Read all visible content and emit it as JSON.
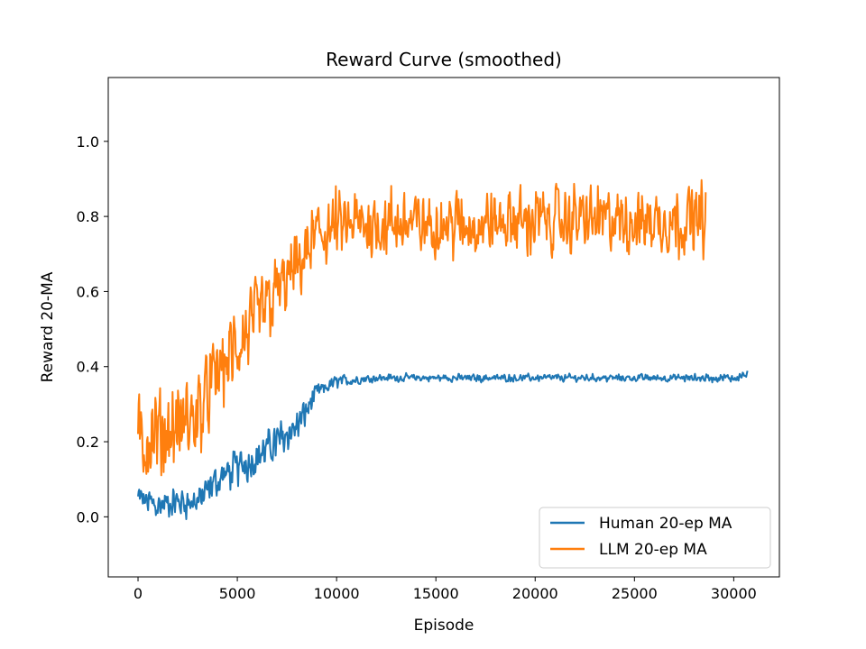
{
  "chart_data": {
    "type": "line",
    "title": "Reward Curve (smoothed)",
    "xlabel": "Episode",
    "ylabel": "Reward 20-MA",
    "xlim": [
      -1500,
      32300
    ],
    "ylim": [
      -0.16,
      1.17
    ],
    "xticks": [
      0,
      5000,
      10000,
      15000,
      20000,
      25000,
      30000
    ],
    "yticks": [
      0.0,
      0.2,
      0.4,
      0.6,
      0.8,
      1.0
    ],
    "xtick_labels": [
      "0",
      "5000",
      "10000",
      "15000",
      "20000",
      "25000",
      "30000"
    ],
    "ytick_labels": [
      "0.0",
      "0.2",
      "0.4",
      "0.6",
      "0.8",
      "1.0"
    ],
    "grid": false,
    "legend_position": "lower-right",
    "series": [
      {
        "name": "Human 20-ep MA",
        "color": "#1f77b4",
        "x": [
          0,
          1000,
          2000,
          3000,
          4000,
          5000,
          6000,
          7000,
          8000,
          9000,
          10000,
          12000,
          15000,
          20000,
          25000,
          30000,
          30700
        ],
        "values": [
          0.05,
          0.03,
          0.04,
          0.04,
          0.1,
          0.13,
          0.16,
          0.2,
          0.24,
          0.33,
          0.36,
          0.37,
          0.37,
          0.37,
          0.37,
          0.37,
          0.38
        ],
        "noise": [
          0.05,
          0.05,
          0.05,
          0.05,
          0.06,
          0.06,
          0.06,
          0.06,
          0.06,
          0.03,
          0.02,
          0.012,
          0.012,
          0.012,
          0.012,
          0.014,
          0.014
        ]
      },
      {
        "name": "LLM 20-ep MA",
        "color": "#ff7f0e",
        "x": [
          0,
          1000,
          2000,
          3000,
          4000,
          5000,
          6000,
          7000,
          8000,
          9000,
          10000,
          12000,
          15000,
          20000,
          25000,
          28600
        ],
        "values": [
          0.2,
          0.22,
          0.24,
          0.27,
          0.38,
          0.45,
          0.52,
          0.6,
          0.66,
          0.75,
          0.77,
          0.78,
          0.78,
          0.79,
          0.79,
          0.79
        ],
        "noise": [
          0.15,
          0.15,
          0.15,
          0.15,
          0.15,
          0.15,
          0.14,
          0.13,
          0.12,
          0.11,
          0.11,
          0.11,
          0.11,
          0.11,
          0.11,
          0.11
        ]
      }
    ]
  }
}
